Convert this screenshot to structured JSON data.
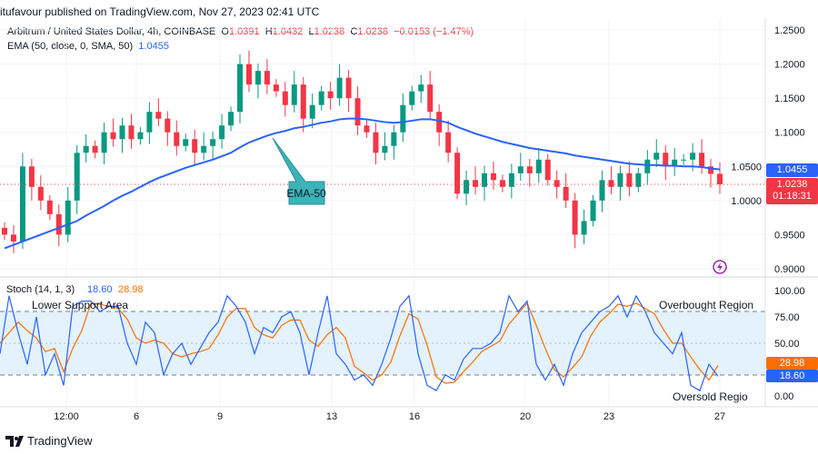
{
  "header": {
    "published": "itufavour published on TradingView.com, Nov 27, 2023 02:41 UTC"
  },
  "legend": {
    "symbol": "Arbitrum / United States Dollar, 4h, COINBASE",
    "o_label": "O",
    "o": "1.0391",
    "h_label": "H",
    "h": "1.0432",
    "l_label": "L",
    "l": "1.0238",
    "c_label": "C",
    "c": "1.0238",
    "change": "−0.0153 (−1.47%)",
    "ema_label": "EMA (50, close, 0, SMA, 50)",
    "ema_value": "1.0455",
    "stoch_label": "Stoch (14, 1, 3)",
    "stoch_k": "18.60",
    "stoch_d": "28.98"
  },
  "badges": {
    "ema": "1.0455",
    "price": "1.0238",
    "countdown": "01:18:31",
    "stoch_d": "28.98",
    "stoch_k": "18.60"
  },
  "annotations": {
    "ema_callout": "EMA-50",
    "lower_support": "Lower Support Area",
    "overbought": "Overbought Region",
    "oversold": "Oversold Regio"
  },
  "footer": {
    "brand": "TradingView"
  },
  "colors": {
    "up": "#089981",
    "down": "#f23645",
    "ema": "#2962ff",
    "stoch_k": "#2962ff",
    "stoch_d": "#ff6d00",
    "band": "#e3f2fd",
    "callout": "#3bb3b8"
  },
  "chart_data": [
    {
      "type": "candlestick",
      "title": "Arbitrum / United States Dollar, 4h, COINBASE",
      "ylim": [
        0.9,
        1.25
      ],
      "y_ticks": [
        "1.2500",
        "1.2000",
        "1.1500",
        "1.1000",
        "1.0500",
        "1.0000",
        "0.9500",
        "0.9000"
      ],
      "x_ticks": [
        "12:00",
        "6",
        "9",
        "13",
        "16",
        "20",
        "23",
        "27"
      ],
      "close": [
        0.95,
        0.94,
        1.05,
        1.02,
        1.0,
        0.98,
        0.95,
        1.0,
        1.07,
        1.08,
        1.07,
        1.1,
        1.09,
        1.11,
        1.09,
        1.1,
        1.13,
        1.12,
        1.1,
        1.08,
        1.09,
        1.07,
        1.08,
        1.09,
        1.11,
        1.13,
        1.2,
        1.17,
        1.19,
        1.17,
        1.16,
        1.14,
        1.17,
        1.12,
        1.14,
        1.16,
        1.15,
        1.18,
        1.15,
        1.11,
        1.1,
        1.07,
        1.08,
        1.1,
        1.14,
        1.16,
        1.17,
        1.13,
        1.1,
        1.07,
        1.01,
        1.03,
        1.02,
        1.04,
        1.03,
        1.02,
        1.04,
        1.05,
        1.04,
        1.06,
        1.03,
        1.02,
        1.0,
        0.95,
        0.97,
        1.0,
        1.03,
        1.02,
        1.04,
        1.02,
        1.04,
        1.06,
        1.07,
        1.05,
        1.06,
        1.06,
        1.07,
        1.05,
        1.0391,
        1.0238
      ],
      "ema50": [
        0.93,
        0.935,
        0.94,
        0.945,
        0.95,
        0.955,
        0.96,
        0.965,
        0.97,
        0.978,
        0.985,
        0.992,
        1.0,
        1.007,
        1.013,
        1.02,
        1.027,
        1.033,
        1.038,
        1.043,
        1.048,
        1.052,
        1.056,
        1.06,
        1.065,
        1.07,
        1.078,
        1.085,
        1.09,
        1.095,
        1.099,
        1.102,
        1.106,
        1.108,
        1.111,
        1.114,
        1.116,
        1.119,
        1.12,
        1.12,
        1.119,
        1.117,
        1.115,
        1.114,
        1.115,
        1.117,
        1.119,
        1.119,
        1.117,
        1.114,
        1.108,
        1.103,
        1.098,
        1.094,
        1.09,
        1.086,
        1.083,
        1.08,
        1.077,
        1.075,
        1.073,
        1.071,
        1.069,
        1.066,
        1.064,
        1.062,
        1.06,
        1.058,
        1.056,
        1.054,
        1.053,
        1.052,
        1.052,
        1.051,
        1.051,
        1.05,
        1.05,
        1.049,
        1.047,
        1.0455
      ]
    },
    {
      "type": "line",
      "title": "Stoch (14, 1, 3)",
      "ylim": [
        0,
        100
      ],
      "bands": [
        20,
        80
      ],
      "y_ticks": [
        "100.00",
        "75.00",
        "50.00",
        "0.00"
      ],
      "series": [
        {
          "name": "%K",
          "values": [
            40,
            95,
            60,
            30,
            75,
            20,
            40,
            10,
            85,
            90,
            90,
            80,
            85,
            85,
            50,
            30,
            70,
            60,
            20,
            40,
            50,
            30,
            45,
            60,
            70,
            95,
            85,
            70,
            40,
            65,
            60,
            75,
            80,
            60,
            20,
            60,
            95,
            40,
            30,
            15,
            20,
            10,
            30,
            55,
            85,
            95,
            40,
            10,
            5,
            20,
            15,
            35,
            45,
            45,
            50,
            60,
            95,
            80,
            90,
            30,
            15,
            30,
            10,
            40,
            60,
            70,
            80,
            85,
            95,
            75,
            95,
            80,
            60,
            50,
            40,
            60,
            10,
            5,
            30,
            18.6
          ]
        },
        {
          "name": "%D",
          "values": [
            50,
            60,
            70,
            62,
            55,
            42,
            45,
            23,
            45,
            62,
            88,
            87,
            85,
            83,
            73,
            55,
            50,
            53,
            50,
            40,
            37,
            40,
            42,
            45,
            58,
            75,
            83,
            83,
            65,
            58,
            55,
            67,
            72,
            72,
            53,
            47,
            58,
            65,
            55,
            28,
            22,
            15,
            20,
            32,
            57,
            78,
            73,
            48,
            18,
            12,
            13,
            23,
            32,
            42,
            47,
            52,
            68,
            78,
            88,
            67,
            45,
            25,
            18,
            27,
            37,
            57,
            70,
            78,
            87,
            85,
            88,
            83,
            78,
            63,
            50,
            50,
            37,
            25,
            15,
            28.98
          ]
        }
      ]
    }
  ]
}
